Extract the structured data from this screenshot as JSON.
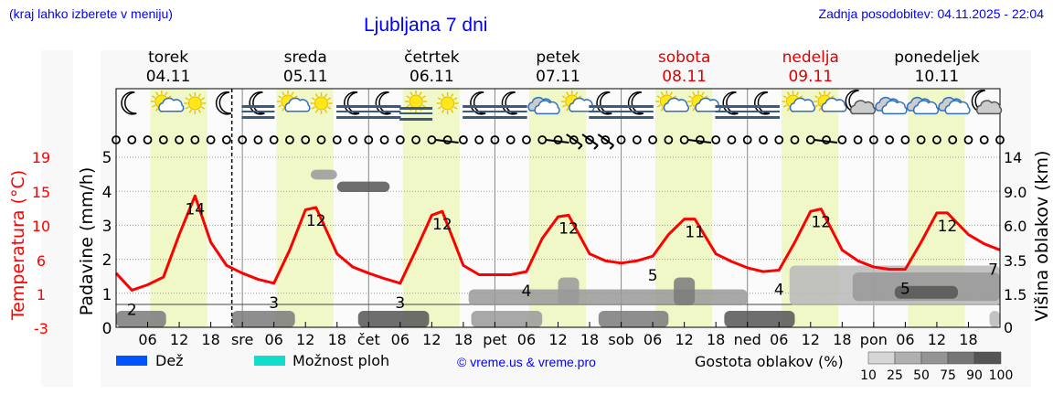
{
  "header": {
    "subtitle": "(kraj lahko izberete v meniju)",
    "title": "Ljubljana 7 dni",
    "updated": "Zadnja posodobitev: 04.11.2025 - 22:04"
  },
  "colors": {
    "temperature": "#ff0000",
    "daylight": "#f0f8c8",
    "rain": "#0055ff",
    "showers": "#11ddcc",
    "link": "#0000ff",
    "weekend": "#dd0000"
  },
  "days": [
    {
      "name": "torek",
      "date": "04.11",
      "weekend": false
    },
    {
      "name": "sreda",
      "date": "05.11",
      "weekend": false
    },
    {
      "name": "četrtek",
      "date": "06.11",
      "weekend": false
    },
    {
      "name": "petek",
      "date": "07.11",
      "weekend": false
    },
    {
      "name": "sobota",
      "date": "08.11",
      "weekend": true
    },
    {
      "name": "nedelja",
      "date": "09.11",
      "weekend": true
    },
    {
      "name": "ponedeljek",
      "date": "10.11",
      "weekend": false
    }
  ],
  "legend": {
    "rain": "Dež",
    "showers": "Možnost ploh",
    "copyright": "© vreme.us & vreme.pro",
    "cloud_density": "Gostota oblakov (%)",
    "density_steps": [
      "10",
      "25",
      "50",
      "75",
      "90",
      "100"
    ]
  },
  "weather_icons": [
    "moon",
    "sun-cloud",
    "sun",
    "moon",
    "fog-moon",
    "sun-cloud",
    "sun",
    "fog-moon",
    "fog-moon",
    "fog-sun",
    "sun",
    "fog-moon",
    "fog-moon",
    "cloud",
    "sun-cloud",
    "fog-moon",
    "fog-moon",
    "sun-cloud",
    "sun-cloud",
    "fog-moon",
    "fog-moon",
    "sun-cloud",
    "sun-cloud",
    "moon-cloud",
    "cloud",
    "cloud",
    "cloud",
    "moon-cloud"
  ],
  "chart_data": {
    "type": "line",
    "title": "Ljubljana 7 dni",
    "x_unit": "hours from 04.11 00:00",
    "xlim": [
      0,
      168
    ],
    "x_tick_labels": [
      "06",
      "12",
      "18",
      "sre",
      "06",
      "12",
      "18",
      "čet",
      "06",
      "12",
      "18",
      "pet",
      "06",
      "12",
      "18",
      "sob",
      "06",
      "12",
      "18",
      "ned",
      "06",
      "12",
      "18",
      "pon",
      "06",
      "12",
      "18"
    ],
    "now_marker_hour": 22,
    "daylight_hours": [
      6.5,
      17.3
    ],
    "left_axis_temperature": {
      "label": "Temperatura (°C)",
      "ticks": [
        "19",
        "15",
        "10",
        "6",
        "1",
        "-3"
      ],
      "range": [
        -3,
        19
      ]
    },
    "left_axis_precip": {
      "label": "Padavine (mm/h)",
      "ticks": [
        "5",
        "4",
        "3",
        "2",
        "1",
        "0"
      ],
      "range": [
        0,
        5
      ]
    },
    "right_axis_cloud_height": {
      "label": "Višina oblakov (km)",
      "ticks": [
        "14",
        "9.0",
        "6.0",
        "3.5",
        "1.5",
        "0"
      ],
      "values": [
        14,
        9,
        6,
        3.5,
        1.5,
        0
      ]
    },
    "temperature": {
      "x": [
        0,
        3,
        6,
        9,
        12,
        15,
        18,
        21,
        24,
        27,
        30,
        33,
        36,
        38,
        42,
        45,
        48,
        51,
        54,
        57,
        60,
        62,
        66,
        69,
        72,
        75,
        78,
        81,
        84,
        86,
        90,
        93,
        96,
        99,
        102,
        105,
        108,
        110,
        114,
        117,
        120,
        123,
        126,
        129,
        132,
        134,
        138,
        141,
        144,
        147,
        150,
        153,
        156,
        158,
        162,
        165,
        168
      ],
      "values": [
        4,
        1.8,
        2.5,
        3.5,
        9,
        14,
        8,
        5,
        4,
        3.2,
        2.7,
        7,
        12.2,
        12.5,
        6.5,
        4.8,
        4,
        3.3,
        2.7,
        7,
        11.5,
        12,
        5,
        3.8,
        3.8,
        3.8,
        4.2,
        8.5,
        11.3,
        11.5,
        6.5,
        5.6,
        5.3,
        5.6,
        6.2,
        9,
        11,
        11,
        6.5,
        5.5,
        4.7,
        4.2,
        4.4,
        8,
        12,
        12.3,
        7,
        5.6,
        4.8,
        4.5,
        4.5,
        8,
        11.8,
        11.8,
        9,
        7.8,
        7
      ]
    },
    "min_max_labels": [
      {
        "x": 3,
        "text": "2"
      },
      {
        "x": 15,
        "text": "14"
      },
      {
        "x": 30,
        "text": "3"
      },
      {
        "x": 38,
        "text": "12"
      },
      {
        "x": 54,
        "text": "3"
      },
      {
        "x": 62,
        "text": "12"
      },
      {
        "x": 78,
        "text": "4"
      },
      {
        "x": 86,
        "text": "12"
      },
      {
        "x": 102,
        "text": "5"
      },
      {
        "x": 110,
        "text": "11"
      },
      {
        "x": 126,
        "text": "4"
      },
      {
        "x": 134,
        "text": "12"
      },
      {
        "x": 150,
        "text": "5"
      },
      {
        "x": 158,
        "text": "12"
      },
      {
        "x": 167.5,
        "text": "7"
      }
    ],
    "precipitation": [],
    "cloud_patches": [
      {
        "from": 0,
        "to": 9.5,
        "low_km": 0,
        "high_km": 0.6,
        "density": 75
      },
      {
        "from": 22,
        "to": 34,
        "low_km": 0,
        "high_km": 0.6,
        "density": 75
      },
      {
        "from": 46,
        "to": 59.5,
        "low_km": 0,
        "high_km": 0.6,
        "density": 90
      },
      {
        "from": 67.5,
        "to": 81,
        "low_km": 0,
        "high_km": 0.6,
        "density": 50
      },
      {
        "from": 91.7,
        "to": 105,
        "low_km": 0,
        "high_km": 0.6,
        "density": 75
      },
      {
        "from": 115.6,
        "to": 129,
        "low_km": 0,
        "high_km": 0.6,
        "density": 90
      },
      {
        "from": 166,
        "to": 168,
        "low_km": 0,
        "high_km": 0.6,
        "density": 25
      },
      {
        "from": 37,
        "to": 42,
        "low_km": 10.8,
        "high_km": 12.2,
        "density": 50
      },
      {
        "from": 42,
        "to": 52,
        "low_km": 9,
        "high_km": 10.5,
        "density": 90
      },
      {
        "from": 67,
        "to": 120,
        "low_km": 1.0,
        "high_km": 1.8,
        "density": 50
      },
      {
        "from": 84,
        "to": 88,
        "low_km": 1.0,
        "high_km": 2.5,
        "density": 50
      },
      {
        "from": 106,
        "to": 110,
        "low_km": 1.0,
        "high_km": 2.5,
        "density": 75
      },
      {
        "from": 128,
        "to": 168,
        "low_km": 1.0,
        "high_km": 3.2,
        "density": 25
      },
      {
        "from": 140,
        "to": 168,
        "low_km": 1.2,
        "high_km": 2.8,
        "density": 50
      },
      {
        "from": 148,
        "to": 160,
        "low_km": 1.3,
        "high_km": 2.0,
        "density": 90
      }
    ],
    "wind_barbs": [
      {
        "x": 63,
        "kind": "light"
      },
      {
        "x": 84,
        "kind": "light"
      },
      {
        "x": 87,
        "kind": "moderate"
      },
      {
        "x": 90,
        "kind": "moderate"
      },
      {
        "x": 93,
        "kind": "moderate"
      },
      {
        "x": 111,
        "kind": "light"
      },
      {
        "x": 135,
        "kind": "light"
      }
    ]
  }
}
